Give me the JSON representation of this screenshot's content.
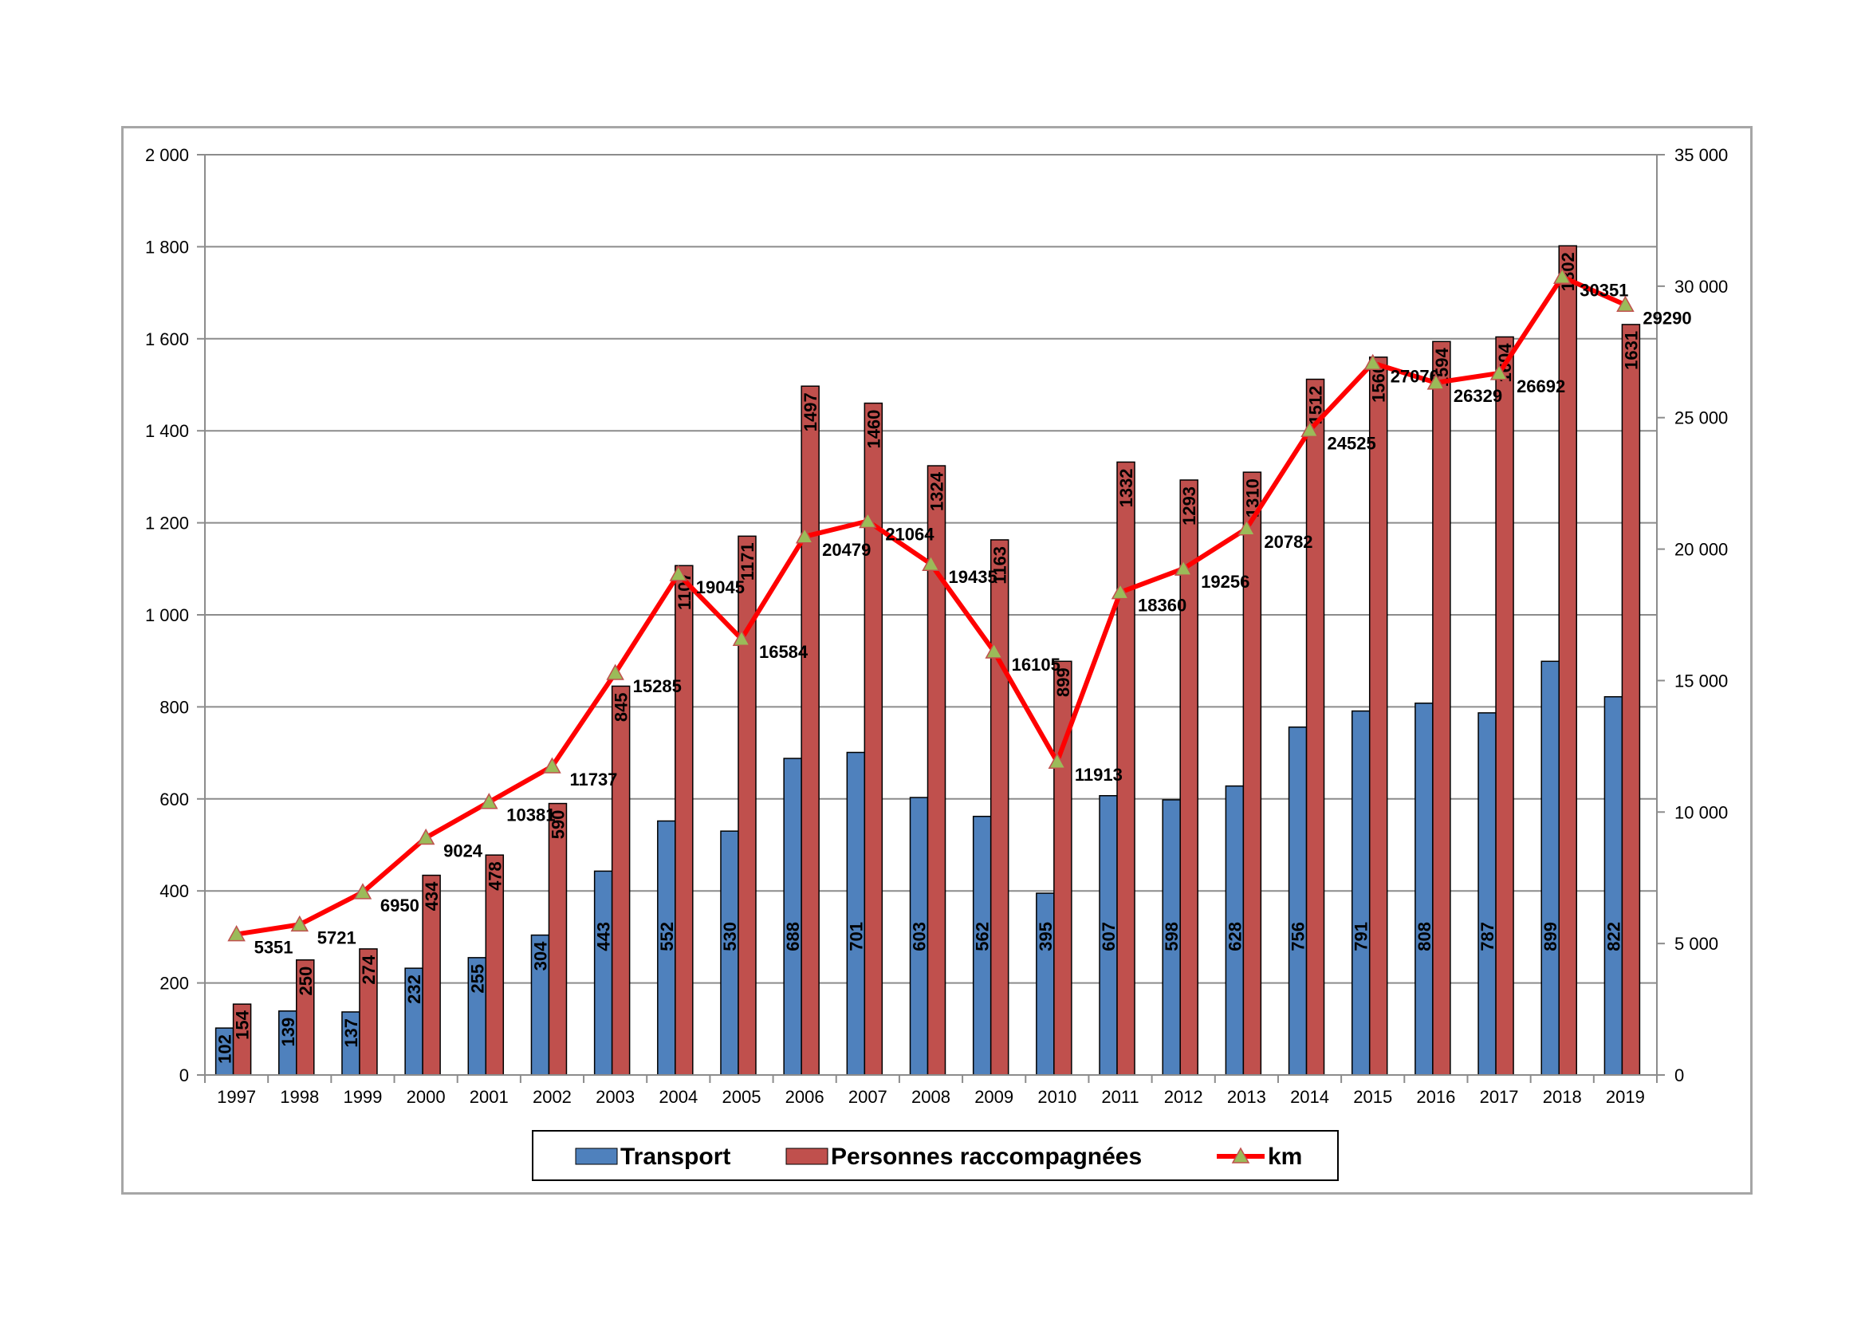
{
  "chart_data": {
    "type": "bar",
    "categories": [
      "1997",
      "1998",
      "1999",
      "2000",
      "2001",
      "2002",
      "2003",
      "2004",
      "2005",
      "2006",
      "2007",
      "2008",
      "2009",
      "2010",
      "2011",
      "2012",
      "2013",
      "2014",
      "2015",
      "2016",
      "2017",
      "2018",
      "2019"
    ],
    "series": [
      {
        "name": "Transport",
        "type": "bar",
        "axis": "left",
        "color": "#4f81bd",
        "values": [
          102,
          139,
          137,
          232,
          255,
          304,
          443,
          552,
          530,
          688,
          701,
          603,
          562,
          395,
          607,
          598,
          628,
          756,
          791,
          808,
          787,
          899,
          822
        ]
      },
      {
        "name": "Personnes raccompagnées",
        "type": "bar",
        "axis": "left",
        "color": "#c0504d",
        "values": [
          154,
          250,
          274,
          434,
          478,
          590,
          845,
          1107,
          1171,
          1497,
          1460,
          1324,
          1163,
          899,
          1332,
          1293,
          1310,
          1512,
          1560,
          1594,
          1604,
          1802,
          1631
        ]
      },
      {
        "name": "km",
        "type": "line",
        "axis": "right",
        "color": "#ff0000",
        "marker": "triangle",
        "marker_color": "#9bbb59",
        "values": [
          5351,
          5721,
          6950,
          9024,
          10381,
          11737,
          15285,
          19045,
          16584,
          20479,
          21064,
          19435,
          16105,
          11913,
          18360,
          19256,
          20782,
          24525,
          27076,
          26329,
          26692,
          30351,
          29290
        ]
      }
    ],
    "labels": {
      "bars_a": [
        "102",
        "139",
        "137",
        "232",
        "255",
        "304",
        "443",
        "552",
        "530",
        "688",
        "701",
        "603",
        "562",
        "395",
        "607",
        "598",
        "628",
        "756",
        "791",
        "808",
        "787",
        "899",
        "822"
      ],
      "bars_b": [
        "154",
        "250",
        "274",
        "434",
        "478",
        "590",
        "845",
        "1107",
        "1171",
        "1497",
        "1460",
        "1324",
        "1163",
        "899",
        "1332",
        "1293",
        "1310",
        "1512",
        "1560",
        "1594",
        "1604",
        "1802",
        "1631"
      ],
      "line": [
        "5351",
        "5721",
        "6950",
        "9024",
        "10381",
        "11737",
        "15285",
        "19045",
        "16584",
        "20479",
        "21064",
        "19435",
        "16105",
        "11913",
        "18360",
        "19256",
        "20782",
        "24525",
        "27076",
        "26329",
        "26692",
        "30351",
        "29290"
      ]
    },
    "y_left": {
      "min": 0,
      "max": 2000,
      "step": 200,
      "tick_labels": [
        "0",
        "200",
        "400",
        "600",
        "800",
        "1 000",
        "1 200",
        "1 400",
        "1 600",
        "1 800",
        "2 000"
      ]
    },
    "y_right": {
      "min": 0,
      "max": 35000,
      "step": 5000,
      "tick_labels": [
        "0",
        "5 000",
        "10 000",
        "15 000",
        "20 000",
        "25 000",
        "30 000",
        "35 000"
      ]
    },
    "grid": true,
    "legend_position": "bottom",
    "legend": [
      "Transport",
      "Personnes raccompagnées",
      "km"
    ]
  }
}
